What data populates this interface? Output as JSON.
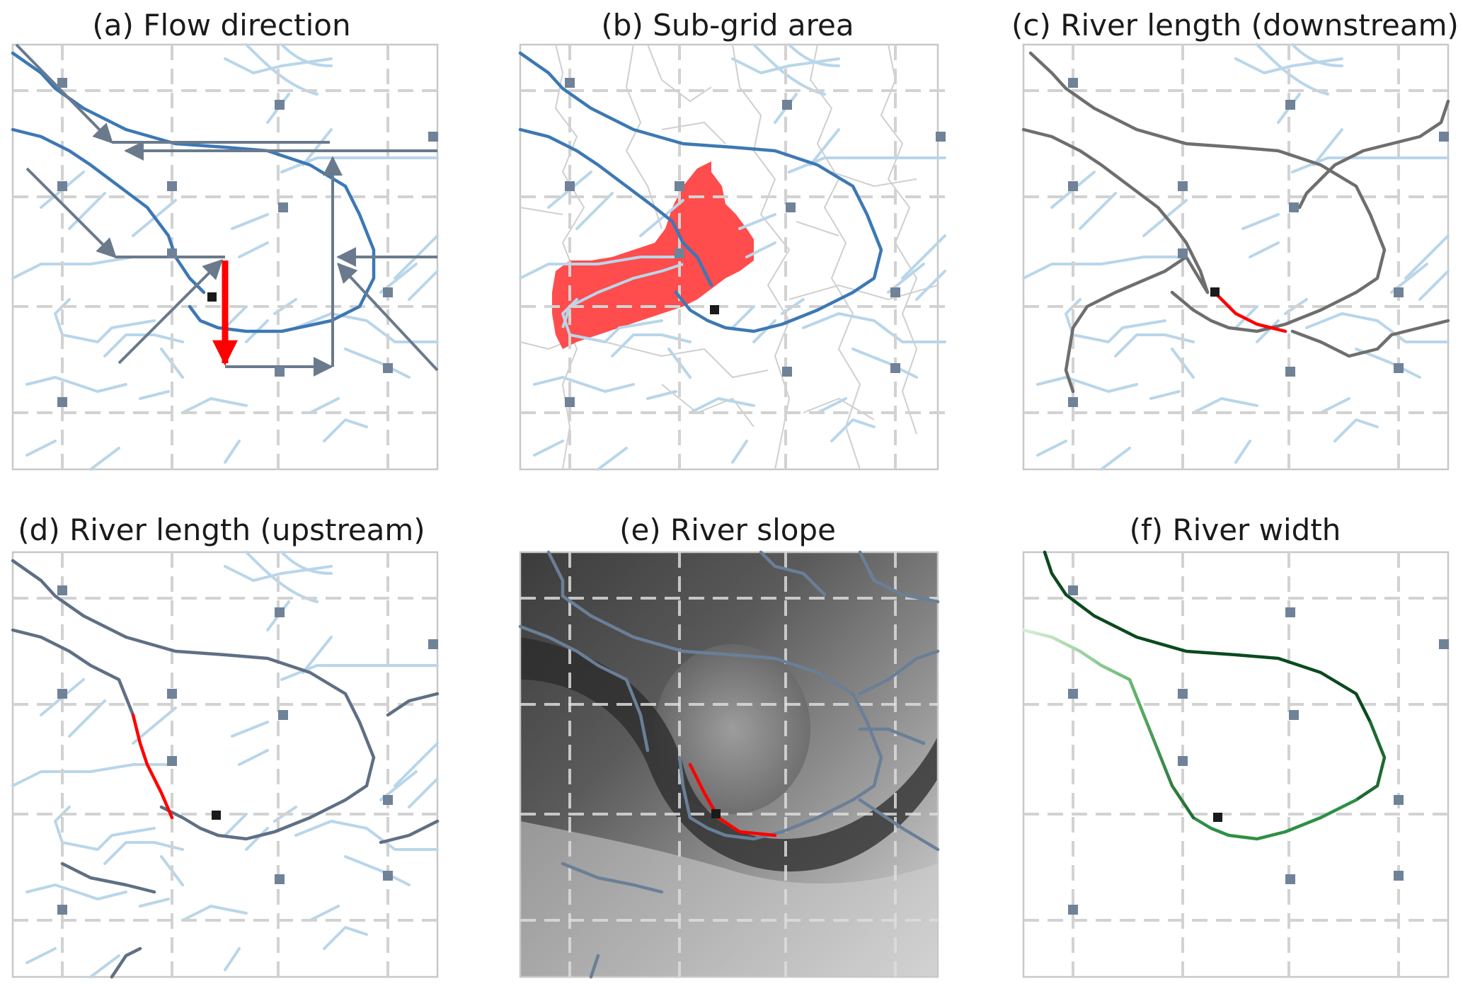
{
  "panels": [
    {
      "id": "a",
      "title": "(a) Flow direction"
    },
    {
      "id": "b",
      "title": "(b) Sub-grid area"
    },
    {
      "id": "c",
      "title": "(c) River length (downstream)"
    },
    {
      "id": "d",
      "title": "(d) River length (upstream)"
    },
    {
      "id": "e",
      "title": "(e) River slope"
    },
    {
      "id": "f",
      "title": "(f)  River width"
    }
  ],
  "colors": {
    "highlight": "#ff0000",
    "subgrid_area": "#ff4c4c",
    "river_main": "#3d78b4",
    "river_minor": "#b9d6ea",
    "flow_arrow": "#6a7a8c",
    "node": "#6f8298",
    "outlet": "#1a1a1a",
    "river_gray": "#6e6e6e",
    "river_slate": "#5f6f84",
    "width_dark": "#0b4a1f",
    "width_mid": "#2f8f45",
    "width_light": "#cdeacb"
  },
  "icons": [
    "grid-node-square",
    "outlet-square",
    "flow-arrow",
    "direction-triangle"
  ]
}
